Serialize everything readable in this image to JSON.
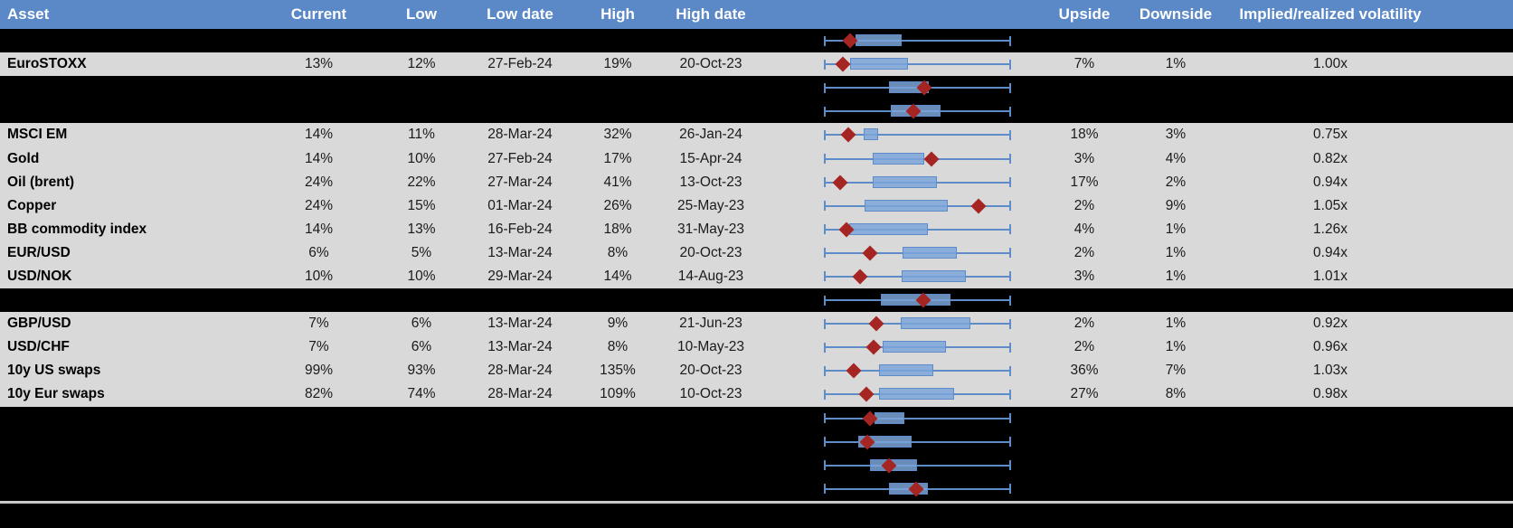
{
  "colors": {
    "header_bg": "#5b89c7",
    "header_text": "#ffffff",
    "data_row_bg": "#d9d9d9",
    "hidden_row_bg": "#000000",
    "box_fill": "#7ca5d9",
    "whisker_blue": "#5d8cc9",
    "marker_red": "#a52522",
    "separator": "#c9c9c9"
  },
  "chart_data": {
    "type": "table",
    "columns": [
      "Asset",
      "Current",
      "Low",
      "Low date",
      "High",
      "High date",
      "Upside",
      "Downside",
      "Implied/realized volatility"
    ],
    "embedded_plot": {
      "kind": "range-boxplot-per-row",
      "description": "Each row shows a full-width 52-week low-high whisker (0 to 1 span); 'box' is the blue inter-range rectangle and 'marker' is the red diamond (current level), both as fractions of the whisker span.",
      "whisker_span": [
        0,
        1
      ]
    },
    "rows": [
      {
        "hidden": true,
        "asset": "",
        "box": [
          0.165,
          0.415
        ],
        "marker": 0.139
      },
      {
        "hidden": false,
        "asset": "EuroSTOXX",
        "current": "13%",
        "low": "12%",
        "low_date": "27-Feb-24",
        "high": "19%",
        "high_date": "20-Oct-23",
        "upside": "7%",
        "downside": "1%",
        "iv_rv": "1.00x",
        "box": [
          0.135,
          0.447
        ],
        "marker": 0.099
      },
      {
        "hidden": true,
        "asset": "",
        "box": [
          0.346,
          0.56
        ],
        "marker": 0.537
      },
      {
        "hidden": true,
        "asset": "",
        "box": [
          0.358,
          0.623
        ],
        "marker": 0.48
      },
      {
        "hidden": false,
        "asset": "MSCI EM",
        "current": "14%",
        "low": "11%",
        "low_date": "28-Mar-24",
        "high": "32%",
        "high_date": "26-Jan-24",
        "upside": "18%",
        "downside": "3%",
        "iv_rv": "0.75x",
        "box": [
          0.211,
          0.29
        ],
        "marker": 0.127
      },
      {
        "hidden": false,
        "asset": "Gold",
        "current": "14%",
        "low": "10%",
        "low_date": "27-Feb-24",
        "high": "17%",
        "high_date": "15-Apr-24",
        "upside": "3%",
        "downside": "4%",
        "iv_rv": "0.82x",
        "box": [
          0.26,
          0.539
        ],
        "marker": 0.574
      },
      {
        "hidden": false,
        "asset": "Oil (brent)",
        "current": "24%",
        "low": "22%",
        "low_date": "27-Mar-24",
        "high": "41%",
        "high_date": "13-Oct-23",
        "upside": "17%",
        "downside": "2%",
        "iv_rv": "0.94x",
        "box": [
          0.26,
          0.606
        ],
        "marker": 0.083
      },
      {
        "hidden": false,
        "asset": "Copper",
        "current": "24%",
        "low": "15%",
        "low_date": "01-Mar-24",
        "high": "26%",
        "high_date": "25-May-23",
        "upside": "2%",
        "downside": "9%",
        "iv_rv": "1.05x",
        "box": [
          0.214,
          0.663
        ],
        "marker": 0.827
      },
      {
        "hidden": false,
        "asset": "BB commodity index",
        "current": "14%",
        "low": "13%",
        "low_date": "16-Feb-24",
        "high": "18%",
        "high_date": "31-May-23",
        "upside": "4%",
        "downside": "1%",
        "iv_rv": "1.26x",
        "box": [
          0.132,
          0.557
        ],
        "marker": 0.116
      },
      {
        "hidden": false,
        "asset": "EUR/USD",
        "current": "6%",
        "low": "5%",
        "low_date": "13-Mar-24",
        "high": "8%",
        "high_date": "20-Oct-23",
        "upside": "2%",
        "downside": "1%",
        "iv_rv": "0.94x",
        "box": [
          0.418,
          0.712
        ],
        "marker": 0.244
      },
      {
        "hidden": false,
        "asset": "USD/NOK",
        "current": "10%",
        "low": "10%",
        "low_date": "29-Mar-24",
        "high": "14%",
        "high_date": "14-Aug-23",
        "upside": "3%",
        "downside": "1%",
        "iv_rv": "1.01x",
        "box": [
          0.417,
          0.76
        ],
        "marker": 0.19
      },
      {
        "hidden": true,
        "asset": "",
        "box": [
          0.304,
          0.68
        ],
        "marker": 0.533
      },
      {
        "hidden": false,
        "asset": "GBP/USD",
        "current": "7%",
        "low": "6%",
        "low_date": "13-Mar-24",
        "high": "9%",
        "high_date": "21-Jun-23",
        "upside": "2%",
        "downside": "1%",
        "iv_rv": "0.92x",
        "box": [
          0.41,
          0.786
        ],
        "marker": 0.279
      },
      {
        "hidden": false,
        "asset": "USD/CHF",
        "current": "7%",
        "low": "6%",
        "low_date": "13-Mar-24",
        "high": "8%",
        "high_date": "10-May-23",
        "upside": "2%",
        "downside": "1%",
        "iv_rv": "0.96x",
        "box": [
          0.312,
          0.655
        ],
        "marker": 0.263
      },
      {
        "hidden": false,
        "asset": "10y US swaps",
        "current": "99%",
        "low": "93%",
        "low_date": "28-Mar-24",
        "high": "135%",
        "high_date": "20-Oct-23",
        "upside": "36%",
        "downside": "7%",
        "iv_rv": "1.03x",
        "box": [
          0.293,
          0.587
        ],
        "marker": 0.157
      },
      {
        "hidden": false,
        "asset": "10y Eur swaps",
        "current": "82%",
        "low": "74%",
        "low_date": "28-Mar-24",
        "high": "109%",
        "high_date": "10-Oct-23",
        "upside": "27%",
        "downside": "8%",
        "iv_rv": "0.98x",
        "box": [
          0.293,
          0.696
        ],
        "marker": 0.222
      },
      {
        "hidden": true,
        "asset": "",
        "box": [
          0.268,
          0.431
        ],
        "marker": 0.244
      },
      {
        "hidden": true,
        "asset": "",
        "box": [
          0.181,
          0.467
        ],
        "marker": 0.227
      },
      {
        "hidden": true,
        "asset": "",
        "box": [
          0.244,
          0.497
        ],
        "marker": 0.345
      },
      {
        "hidden": true,
        "asset": "",
        "box": [
          0.345,
          0.554
        ],
        "marker": 0.492
      }
    ]
  }
}
